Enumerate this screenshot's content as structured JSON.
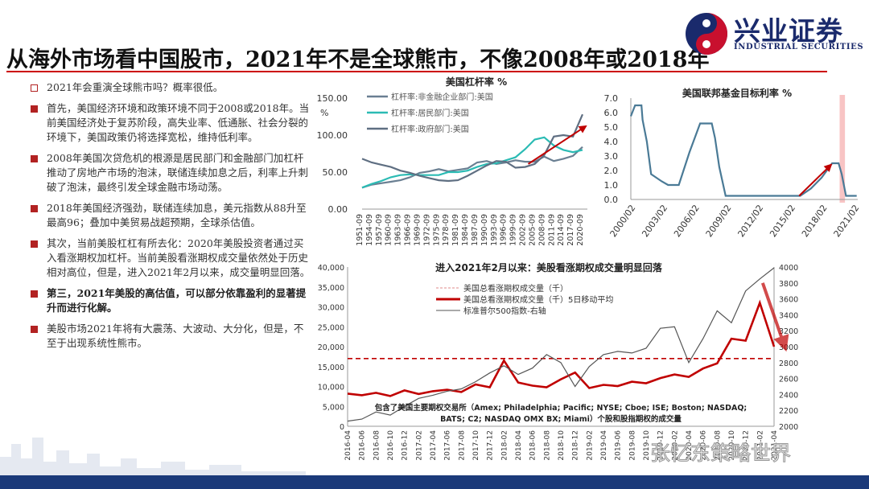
{
  "header": {
    "title": "从海外市场看中国股市，2021年不是全球熊市，不像2008年或2018年",
    "logo_name": "兴业证券",
    "logo_en": "INDUSTRIAL SECURITIES"
  },
  "bullets": [
    {
      "text": "2021年会重演全球熊市吗？概率很低。",
      "bold": false,
      "hollow": true
    },
    {
      "text": "首先，美国经济环境和政策环境不同于2008或2018年。当前美国经济处于复苏阶段，高失业率、低通胀、社会分裂的环境下，美国政策仍将选择宽松，维持低利率。",
      "bold": false,
      "hollow": false
    },
    {
      "text": "2008年美国次贷危机的根源是居民部门和金融部门加杠杆推动了房地产市场的泡沫，联储连续加息之后，利率上升刺破了泡沫，最终引发全球金融市场动荡。",
      "bold": false,
      "hollow": false
    },
    {
      "text": "2018年美国经济强劲，联储连续加息，美元指数从88升至最高96；叠加中美贸易战超预期，全球杀估值。",
      "bold": false,
      "hollow": false
    },
    {
      "text": "其次，当前美股杠杠有所去化：2020年美股投资者通过买入看涨期权加杠杆。当前美股看涨期权成交量依然处于历史相对高位，但是，进入2021年2月以来，成交量明显回落。",
      "bold": false,
      "hollow": false
    },
    {
      "text": "第三，2021年美股的高估值，可以部分依靠盈利的显著提升而进行化解。",
      "bold": true,
      "hollow": false
    },
    {
      "text": "美股市场2021年将有大震荡、大波动、大分化，但是，不至于出现系统性熊市。",
      "bold": false,
      "hollow": false
    }
  ],
  "watermark": "张忆东策略世界",
  "colors": {
    "accent_red": "#c00000",
    "brand_blue": "#1b3a7a",
    "series_gray": "#6a7f92",
    "series_teal": "#2bbbb4",
    "series_slate": "#5f6f82"
  },
  "chart_data": [
    {
      "type": "line",
      "title": "美国杠杆率 %",
      "ylabel": "%",
      "ylim": [
        0,
        150
      ],
      "yticks": [
        "150.00",
        "100.00",
        "50.00",
        "0.00"
      ],
      "x_labels": [
        "1951-09",
        "1954-09",
        "1957-09",
        "1960-09",
        "1963-09",
        "1966-09",
        "1969-09",
        "1972-09",
        "1975-09",
        "1978-09",
        "1981-09",
        "1984-09",
        "1987-09",
        "1990-09",
        "1993-09",
        "1996-09",
        "1999-09",
        "2002-09",
        "2005-09",
        "2008-09",
        "2011-09",
        "2014-09",
        "2017-09",
        "2020-09"
      ],
      "x_years": [
        1951,
        1954,
        1957,
        1960,
        1963,
        1966,
        1969,
        1972,
        1975,
        1978,
        1981,
        1984,
        1987,
        1990,
        1993,
        1996,
        1999,
        2002,
        2005,
        2008,
        2011,
        2014,
        2017,
        2020
      ],
      "series": [
        {
          "name": "杠杆率:非金融企业部门:美国",
          "color": "#6a7f92",
          "values": [
            29,
            33,
            35,
            37,
            39,
            43,
            49,
            51,
            54,
            51,
            53,
            55,
            63,
            65,
            61,
            63,
            66,
            64,
            64,
            71,
            65,
            68,
            72,
            84
          ]
        },
        {
          "name": "杠杆率:居民部门:美国",
          "color": "#2bbbb4",
          "values": [
            29,
            34,
            38,
            43,
            46,
            47,
            46,
            46,
            46,
            50,
            50,
            52,
            57,
            61,
            62,
            66,
            70,
            81,
            94,
            97,
            86,
            80,
            77,
            80
          ]
        },
        {
          "name": "杠杆率:政府部门:美国",
          "color": "#5f6f82",
          "values": [
            68,
            63,
            60,
            57,
            52,
            49,
            45,
            42,
            39,
            38,
            39,
            45,
            52,
            59,
            65,
            64,
            56,
            57,
            61,
            73,
            98,
            100,
            98,
            128
          ]
        }
      ],
      "annotation": {
        "type": "arrow",
        "color": "#c00000",
        "from": {
          "x": 2003,
          "y": 61
        },
        "to": {
          "x": 2021,
          "y": 112
        }
      }
    },
    {
      "type": "line",
      "title": "美国联邦基金目标利率 %",
      "ylim": [
        0,
        7
      ],
      "yticks": [
        "7.0",
        "6.0",
        "5.0",
        "4.0",
        "3.0",
        "2.0",
        "1.0",
        "0.0"
      ],
      "x_labels": [
        "2000/02",
        "2003/02",
        "2006/02",
        "2009/02",
        "2012/02",
        "2015/02",
        "2018/02",
        "2021/02"
      ],
      "x_years": [
        2000,
        2003,
        2006,
        2009,
        2012,
        2015,
        2018,
        2021
      ],
      "series": [
        {
          "name": "美国联邦基金目标利率",
          "color": "#4a7a96",
          "points": [
            [
              2000,
              5.75
            ],
            [
              2000.4,
              6.5
            ],
            [
              2001,
              6.5
            ],
            [
              2001.1,
              5.5
            ],
            [
              2001.5,
              4.0
            ],
            [
              2001.9,
              1.75
            ],
            [
              2002.9,
              1.25
            ],
            [
              2003.5,
              1.0
            ],
            [
              2004.5,
              1.0
            ],
            [
              2005.5,
              3.25
            ],
            [
              2006.5,
              5.25
            ],
            [
              2007.6,
              5.25
            ],
            [
              2007.9,
              4.25
            ],
            [
              2008.3,
              2.25
            ],
            [
              2008.9,
              0.25
            ],
            [
              2015.9,
              0.25
            ],
            [
              2016.9,
              0.75
            ],
            [
              2017.9,
              1.5
            ],
            [
              2018.9,
              2.5
            ],
            [
              2019.5,
              2.5
            ],
            [
              2019.8,
              1.75
            ],
            [
              2020.2,
              0.25
            ],
            [
              2021.2,
              0.25
            ]
          ]
        }
      ],
      "highlight_band": [
        2019.6,
        2020.1
      ],
      "annotation": {
        "type": "arrow",
        "color": "#c00000",
        "from": {
          "x": 2015.8,
          "y": 0.25
        },
        "to": {
          "x": 2018.8,
          "y": 2.4
        }
      }
    },
    {
      "type": "line",
      "title": "进入2021年2月以来：美股看涨期权成交量明显回落",
      "y_left_lim": [
        0,
        40000
      ],
      "y_left_ticks": [
        "40,000",
        "35,000",
        "30,000",
        "25,000",
        "20,000",
        "15,000",
        "10,000",
        "5,000",
        "0"
      ],
      "y_right_lim": [
        2000,
        4000
      ],
      "y_right_ticks": [
        "4000",
        "3800",
        "3600",
        "3400",
        "3200",
        "3000",
        "2800",
        "2600",
        "2400",
        "2200",
        "2000"
      ],
      "x_labels": [
        "2016-04",
        "2016-06",
        "2016-08",
        "2016-10",
        "2016-12",
        "2017-02",
        "2017-04",
        "2017-06",
        "2017-08",
        "2017-10",
        "2017-12",
        "2018-02",
        "2018-04",
        "2018-06",
        "2018-08",
        "2018-10",
        "2018-12",
        "2019-02",
        "2019-04",
        "2019-06",
        "2019-08",
        "2019-10",
        "2019-12",
        "2020-02",
        "2020-04",
        "2020-06",
        "2020-08",
        "2020-10",
        "2020-12",
        "2021-02",
        "2021-04"
      ],
      "legend": [
        "美国总看涨期权成交量（千）",
        "美国总看涨期权成交量（千）5日移动平均",
        "标准普尔500指数-右轴"
      ],
      "dashed_reference": {
        "y": 17000,
        "color": "#c00000"
      },
      "series": [
        {
          "name": "美国总看涨期权成交量（千）5日移动平均",
          "axis": "left",
          "color": "#c00000",
          "values": [
            8200,
            7800,
            8400,
            7600,
            9000,
            8100,
            8800,
            9200,
            8600,
            10500,
            9800,
            16500,
            11000,
            10200,
            9800,
            11800,
            13500,
            9600,
            10400,
            10100,
            11200,
            10800,
            12100,
            13000,
            12400,
            14500,
            15800,
            22000,
            21500,
            31000,
            20000
          ]
        },
        {
          "name": "标准普尔500指数-右轴",
          "axis": "right",
          "color": "#555555",
          "values": [
            2065,
            2090,
            2180,
            2140,
            2250,
            2350,
            2390,
            2440,
            2470,
            2560,
            2670,
            2760,
            2650,
            2730,
            2900,
            2800,
            2500,
            2750,
            2900,
            2940,
            2920,
            2980,
            3230,
            3250,
            2800,
            3100,
            3450,
            3300,
            3700,
            3850,
            3990
          ]
        }
      ],
      "annotation": {
        "type": "arrow",
        "color": "#c00000",
        "from": {
          "x": 29.2,
          "y": 36000
        },
        "to": {
          "x": 30.8,
          "y": 19500
        }
      },
      "footnote": [
        "包含了美国主要期权交易所（Amex; Philadelphia; Pacific; NYSE; Cboe; ISE; Boston; NASDAQ;",
        "BATS; C2; NASDAQ OMX BX; Miami）个股和股指期权的成交量"
      ]
    }
  ]
}
